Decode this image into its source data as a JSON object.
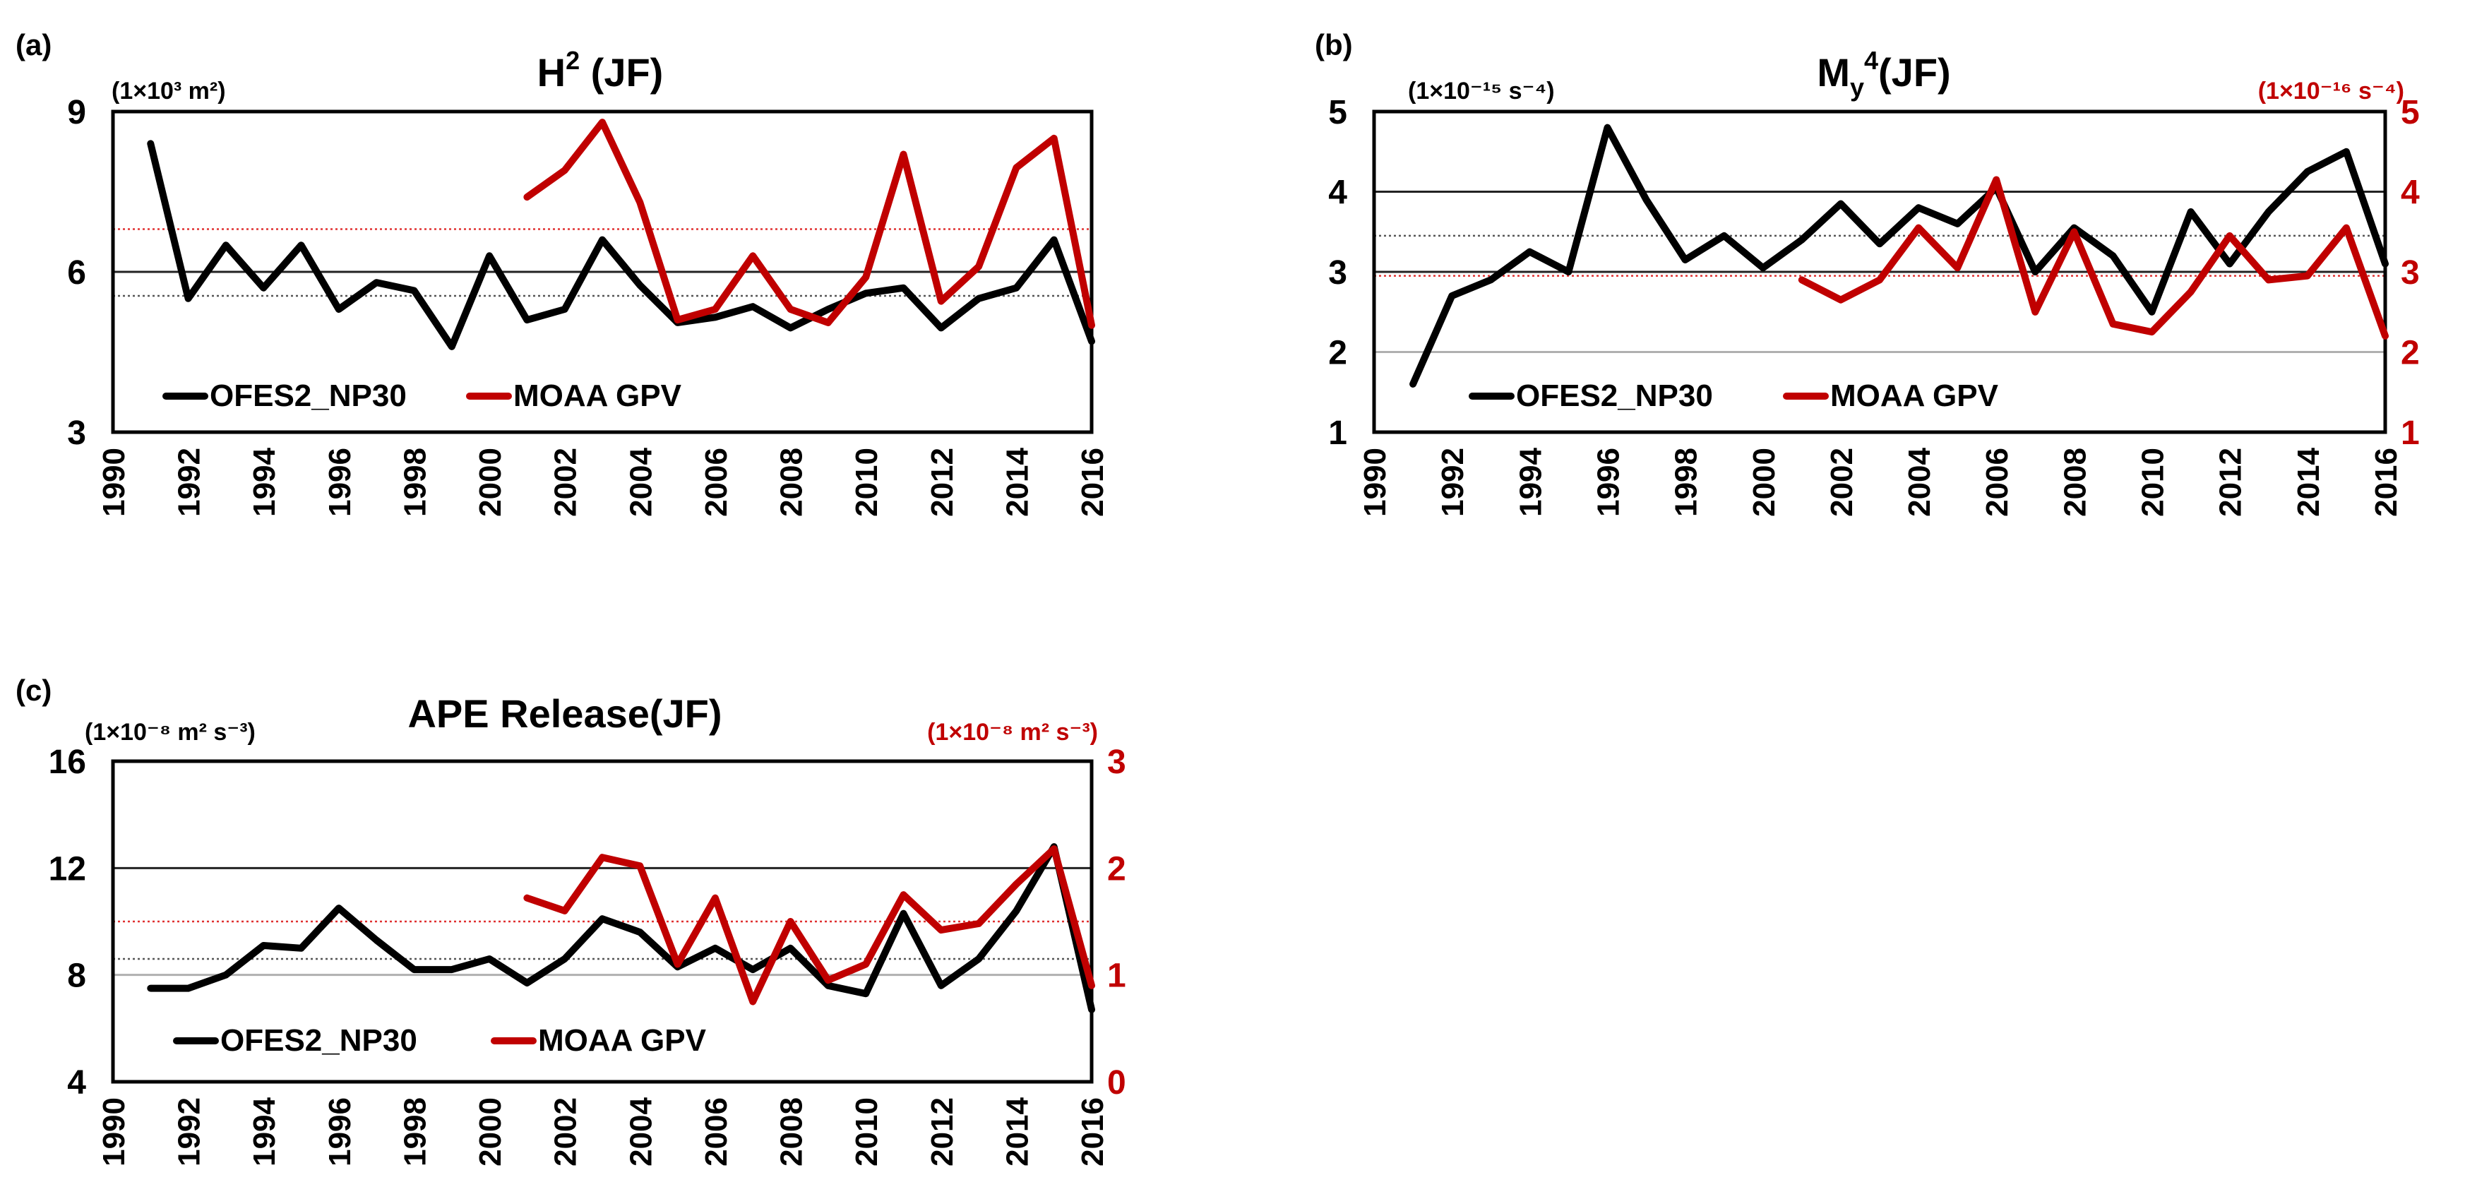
{
  "colors": {
    "black_series": "#000000",
    "red_series": "#c00000",
    "grid": "#9a9a9a",
    "black_mean": "#555555",
    "red_mean": "#e03030"
  },
  "chart_data": [
    {
      "panel": "(a)",
      "type": "line",
      "title_main": "H",
      "title_sup": "2",
      "title_rest": " (JF)",
      "left_unit_label": "(1×10³ m²)",
      "right_unit_label": "",
      "x_ticks": [
        "1990",
        "1992",
        "1994",
        "1996",
        "1998",
        "2000",
        "2002",
        "2004",
        "2006",
        "2008",
        "2010",
        "2012",
        "2014",
        "2016"
      ],
      "xlim": [
        1990,
        2016
      ],
      "left_ylim": [
        3,
        9
      ],
      "left_ticks": [
        "3",
        "6",
        "9"
      ],
      "right_ylim": null,
      "right_ticks": [],
      "gridlines_left": [
        6
      ],
      "series": [
        {
          "name": "OFES2_NP30",
          "color": "black",
          "axis": "left",
          "start_year": 1991,
          "values": [
            8.4,
            5.5,
            6.5,
            5.7,
            6.5,
            5.3,
            5.8,
            5.65,
            4.6,
            6.3,
            5.1,
            5.3,
            6.6,
            5.75,
            5.05,
            5.15,
            5.35,
            4.95,
            5.3,
            5.6,
            5.7,
            4.95,
            5.5,
            5.7,
            6.6,
            4.7
          ],
          "mean": 5.55
        },
        {
          "name": "MOAA GPV",
          "color": "red",
          "axis": "left",
          "start_year": 2001,
          "values": [
            7.4,
            7.9,
            8.8,
            7.3,
            5.1,
            5.3,
            6.3,
            5.3,
            5.05,
            5.9,
            8.2,
            5.45,
            6.1,
            7.95,
            8.5,
            5.0
          ],
          "mean": 6.8
        }
      ],
      "legend": [
        "OFES2_NP30",
        "MOAA GPV"
      ]
    },
    {
      "panel": "(b)",
      "type": "line",
      "title_main": "M",
      "title_sub": "y",
      "title_sup": "4",
      "title_rest": "(JF)",
      "left_unit_label": "(1×10⁻¹⁵ s⁻⁴)",
      "right_unit_label": "(1×10⁻¹⁶ s⁻⁴)",
      "x_ticks": [
        "1990",
        "1992",
        "1994",
        "1996",
        "1998",
        "2000",
        "2002",
        "2004",
        "2006",
        "2008",
        "2010",
        "2012",
        "2014",
        "2016"
      ],
      "xlim": [
        1990,
        2016
      ],
      "left_ylim": [
        1,
        5
      ],
      "left_ticks": [
        "1",
        "2",
        "3",
        "4",
        "5"
      ],
      "right_ylim": [
        1,
        5
      ],
      "right_ticks": [
        "1",
        "2",
        "3",
        "4",
        "5"
      ],
      "gridlines_left": [
        2,
        3,
        4
      ],
      "series": [
        {
          "name": "OFES2_NP30",
          "color": "black",
          "axis": "left",
          "start_year": 1991,
          "values": [
            1.6,
            2.7,
            2.9,
            3.25,
            3.0,
            4.8,
            3.9,
            3.15,
            3.45,
            3.05,
            3.4,
            3.85,
            3.35,
            3.8,
            3.6,
            4.05,
            3.0,
            3.55,
            3.2,
            2.5,
            3.75,
            3.1,
            3.75,
            4.25,
            4.5,
            3.1
          ],
          "mean": 3.45
        },
        {
          "name": "MOAA GPV",
          "color": "red",
          "axis": "right",
          "start_year": 2001,
          "values": [
            2.9,
            2.65,
            2.9,
            3.55,
            3.05,
            4.15,
            2.5,
            3.5,
            2.35,
            2.25,
            2.75,
            3.45,
            2.9,
            2.95,
            3.55,
            2.2
          ],
          "mean": 2.95
        }
      ],
      "legend": [
        "OFES2_NP30",
        "MOAA GPV"
      ]
    },
    {
      "panel": "(c)",
      "type": "line",
      "title_main": "APE Release(JF)",
      "title_sup": "",
      "title_rest": "",
      "left_unit_label": "(1×10⁻⁸ m² s⁻³)",
      "right_unit_label": "(1×10⁻⁸ m² s⁻³)",
      "x_ticks": [
        "1990",
        "1992",
        "1994",
        "1996",
        "1998",
        "2000",
        "2002",
        "2004",
        "2006",
        "2008",
        "2010",
        "2012",
        "2014",
        "2016"
      ],
      "xlim": [
        1990,
        2016
      ],
      "left_ylim": [
        4,
        16
      ],
      "left_ticks": [
        "4",
        "8",
        "12",
        "16"
      ],
      "right_ylim": [
        0,
        3
      ],
      "right_ticks": [
        "0",
        "1",
        "2",
        "3"
      ],
      "gridlines_left": [
        8,
        12
      ],
      "series": [
        {
          "name": "OFES2_NP30",
          "color": "black",
          "axis": "left",
          "start_year": 1991,
          "values": [
            7.5,
            7.5,
            8.0,
            9.1,
            9.0,
            10.5,
            9.3,
            8.2,
            8.2,
            8.6,
            7.7,
            8.6,
            10.1,
            9.6,
            8.3,
            9.0,
            8.2,
            9.0,
            7.6,
            7.3,
            10.3,
            7.6,
            8.6,
            10.4,
            12.8,
            6.7
          ],
          "mean": 8.6
        },
        {
          "name": "MOAA GPV",
          "color": "red",
          "axis": "right",
          "start_year": 2001,
          "values": [
            1.72,
            1.6,
            2.1,
            2.02,
            1.1,
            1.72,
            0.75,
            1.5,
            0.95,
            1.1,
            1.75,
            1.42,
            1.48,
            1.85,
            2.18,
            0.9
          ],
          "mean": 1.5
        }
      ],
      "legend": [
        "OFES2_NP30",
        "MOAA GPV"
      ]
    }
  ]
}
